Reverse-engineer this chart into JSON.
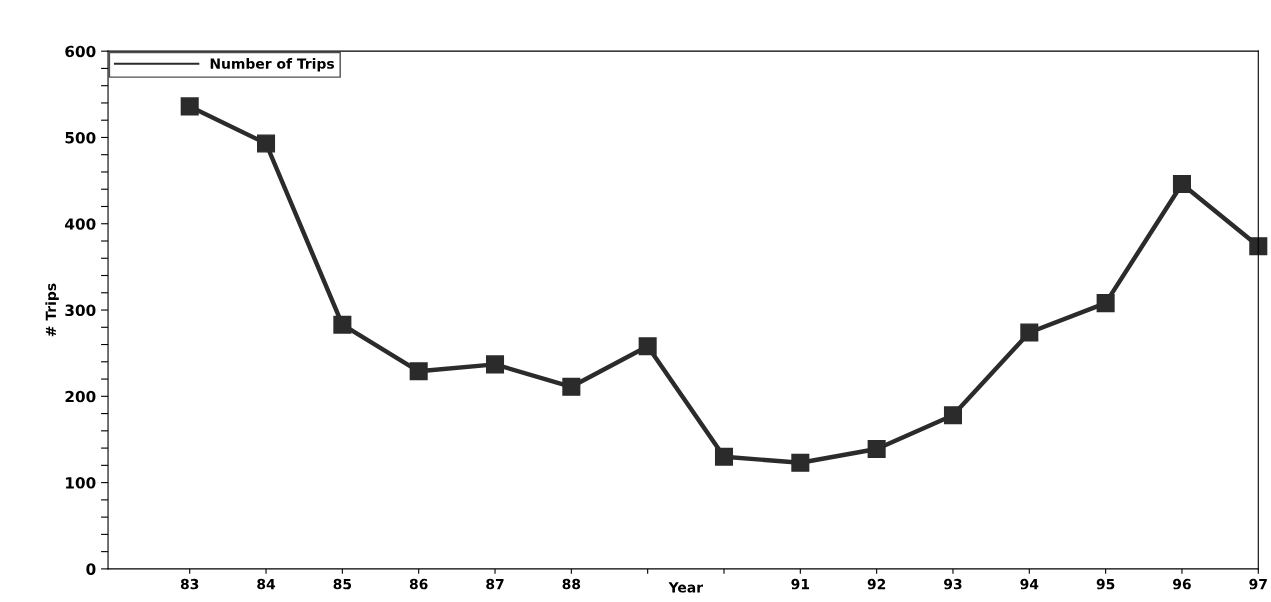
{
  "chart_data": {
    "type": "line",
    "xlabel": "Year",
    "ylabel": "# Trips",
    "categories": [
      "83",
      "84",
      "85",
      "86",
      "87",
      "88",
      null,
      null,
      "91",
      "92",
      "93",
      "94",
      "95",
      "96",
      "97"
    ],
    "series": [
      {
        "name": "Number of Trips",
        "color": "#2b2b2b",
        "values": [
          536,
          493,
          283,
          229,
          237,
          211,
          258,
          130,
          123,
          139,
          178,
          274,
          308,
          446,
          374
        ]
      }
    ],
    "ylim": [
      0,
      600
    ],
    "yticks": [
      0,
      {
        "value": 20,
        "label": null
      },
      {
        "value": 40,
        "label": null
      },
      {
        "value": 60,
        "label": null
      },
      {
        "value": 80,
        "label": null
      },
      100,
      {
        "value": 120,
        "label": null
      },
      {
        "value": 140,
        "label": null
      },
      {
        "value": 160,
        "label": null
      },
      {
        "value": 180,
        "label": null
      },
      200,
      {
        "value": 220,
        "label": null
      },
      {
        "value": 240,
        "label": null
      },
      {
        "value": 260,
        "label": null
      },
      {
        "value": 280,
        "label": null
      },
      300,
      {
        "value": 320,
        "label": null
      },
      {
        "value": 340,
        "label": null
      },
      {
        "value": 360,
        "label": null
      },
      {
        "value": 380,
        "label": null
      },
      400,
      {
        "value": 420,
        "label": null
      },
      {
        "value": 440,
        "label": null
      },
      {
        "value": 460,
        "label": null
      },
      {
        "value": 480,
        "label": null
      },
      500,
      {
        "value": 520,
        "label": null
      },
      {
        "value": 540,
        "label": null
      },
      {
        "value": 560,
        "label": null
      },
      {
        "value": 580,
        "label": null
      },
      600
    ],
    "marker": "square",
    "line_style": "solid",
    "grid": false,
    "legend": "top left"
  }
}
